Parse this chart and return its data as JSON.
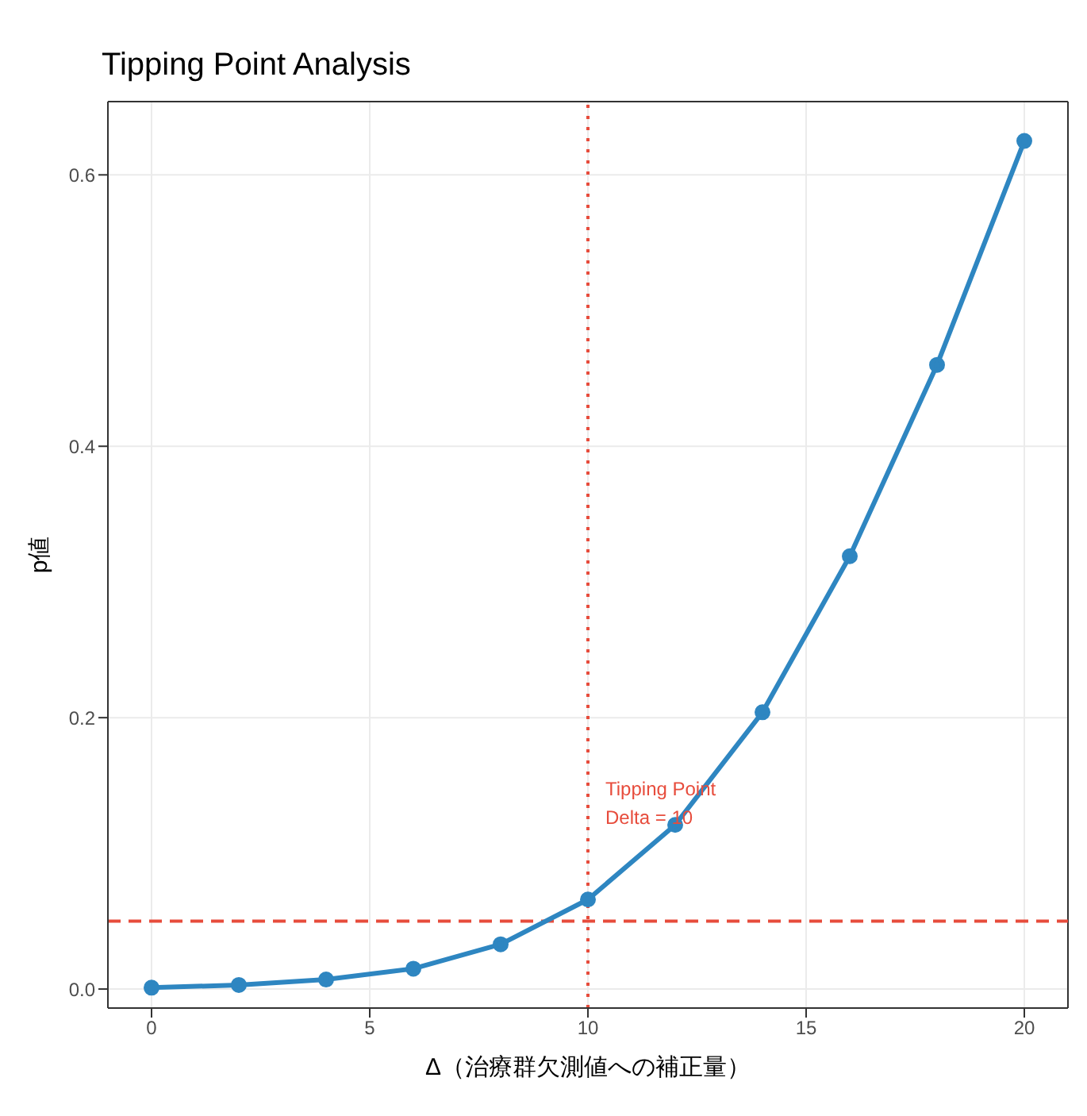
{
  "chart_data": {
    "type": "line",
    "title": "Tipping Point Analysis",
    "xlabel": "Δ（治療群欠測値への補正量）",
    "ylabel": "p値",
    "x": [
      0,
      2,
      4,
      6,
      8,
      10,
      12,
      14,
      16,
      18,
      20
    ],
    "series": [
      {
        "color": "#2e86c1",
        "values": [
          0.001,
          0.003,
          0.007,
          0.015,
          0.033,
          0.066,
          0.121,
          0.204,
          0.319,
          0.46,
          0.625
        ]
      }
    ],
    "xlim": [
      -1,
      21
    ],
    "xticks": [
      0,
      5,
      10,
      15,
      20
    ],
    "ylim": [
      -0.014,
      0.654
    ],
    "yticks": [
      {
        "value": 0,
        "label": "0.0"
      },
      {
        "value": 0.2,
        "label": "0.2"
      },
      {
        "value": 0.4,
        "label": "0.4"
      },
      {
        "value": 0.6,
        "label": "0.6"
      }
    ],
    "grid": true,
    "marker": "circle",
    "line_style": "solid",
    "ref_lines": [
      {
        "axis": "y",
        "value": 0.05,
        "color": "#e74c3c",
        "line_style": "dashed"
      },
      {
        "axis": "x",
        "value": 10,
        "color": "#e74c3c",
        "line_style": "dotted"
      }
    ],
    "annotations": [
      "Tipping Point\nDelta = 10"
    ]
  }
}
